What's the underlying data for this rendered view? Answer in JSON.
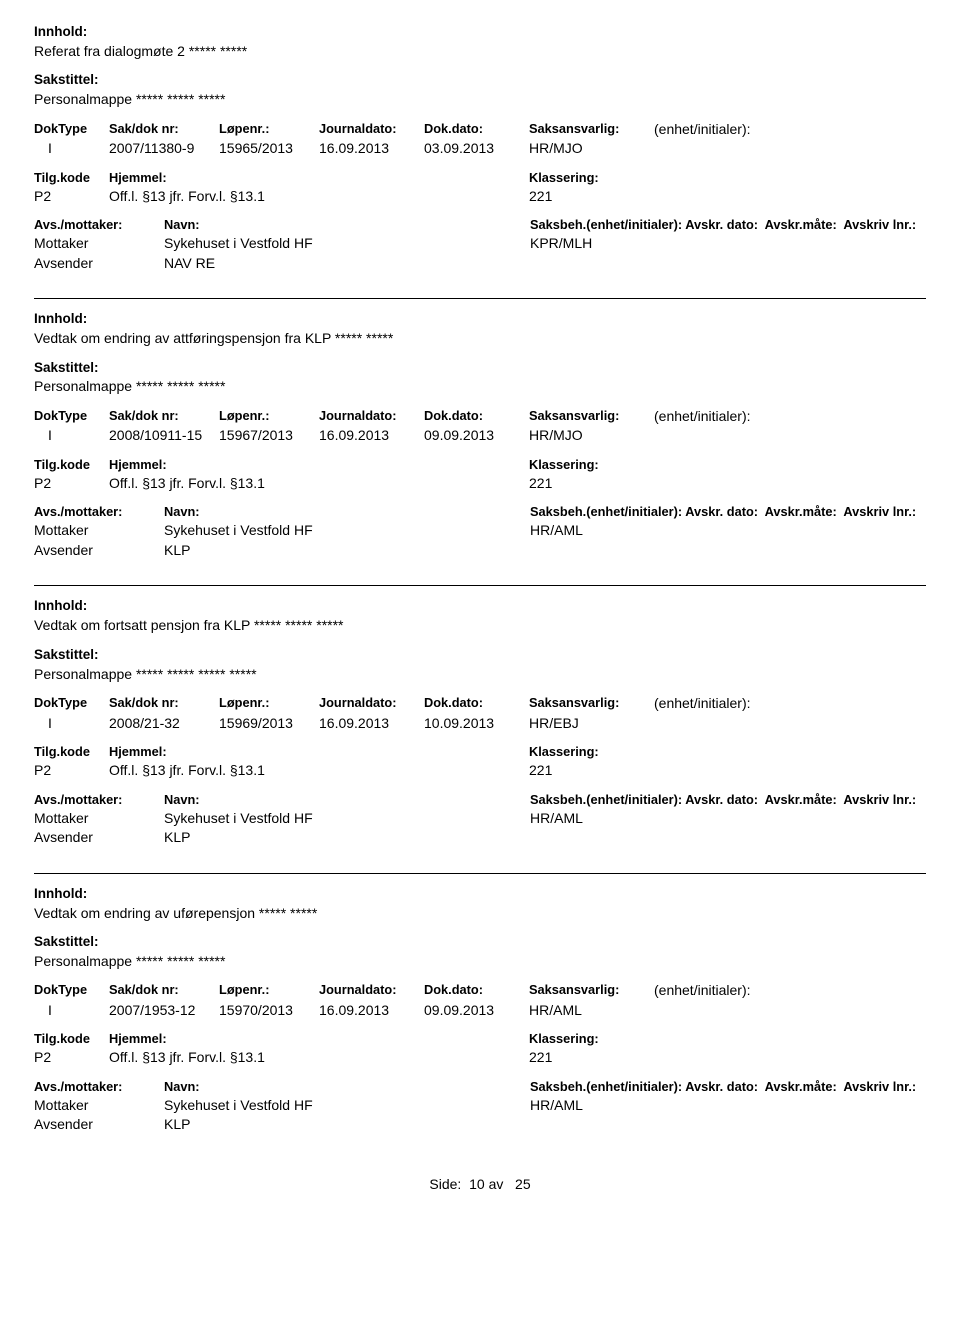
{
  "labels": {
    "innhold": "Innhold:",
    "sakstittel": "Sakstittel:",
    "doktype": "DokType",
    "sakdok": "Sak/dok nr:",
    "lopenr": "Løpenr.:",
    "journaldato": "Journaldato:",
    "dokdato": "Dok.dato:",
    "saksansvarlig": "Saksansvarlig:",
    "enhetinit": "(enhet/initialer):",
    "tilgkode": "Tilg.kode",
    "hjemmel": "Hjemmel:",
    "klassering": "Klassering:",
    "avsmottaker": "Avs./mottaker:",
    "navn": "Navn:",
    "saksbeh": "Saksbeh.(enhet/initialer):",
    "avskrdato": "Avskr. dato:",
    "avskrmate": "Avskr.måte:",
    "avskrivlnr": "Avskriv lnr.:",
    "mottaker": "Mottaker",
    "avsender": "Avsender"
  },
  "footer": {
    "label": "Side:",
    "page": "10",
    "of": "av",
    "total": "25"
  },
  "entries": [
    {
      "innhold": "Referat fra dialogmøte 2 ***** *****",
      "sakstittel": "Personalmappe ***** ***** *****",
      "doktype": "I",
      "sakdok": "2007/11380-9",
      "lopenr": "15965/2013",
      "journaldato": "16.09.2013",
      "dokdato": "03.09.2013",
      "saksansvarlig": "HR/MJO",
      "tilgkode": "P2",
      "hjemmel": "Off.l. §13  jfr. Forv.l. §13.1",
      "klassering": "221",
      "mottaker_navn": "Sykehuset i Vestfold HF",
      "saksbeh": "KPR/MLH",
      "avsender_navn": "NAV RE"
    },
    {
      "innhold": "Vedtak om endring av attføringspensjon fra KLP ***** *****",
      "sakstittel": "Personalmappe ***** *****  *****",
      "doktype": "I",
      "sakdok": "2008/10911-15",
      "lopenr": "15967/2013",
      "journaldato": "16.09.2013",
      "dokdato": "09.09.2013",
      "saksansvarlig": "HR/MJO",
      "tilgkode": "P2",
      "hjemmel": "Off.l. §13  jfr. Forv.l. §13.1",
      "klassering": "221",
      "mottaker_navn": "Sykehuset i Vestfold HF",
      "saksbeh": "HR/AML",
      "avsender_navn": "KLP"
    },
    {
      "innhold": "Vedtak om fortsatt pensjon fra KLP ***** ***** *****",
      "sakstittel": "Personalmappe ***** ***** ***** *****",
      "doktype": "I",
      "sakdok": "2008/21-32",
      "lopenr": "15969/2013",
      "journaldato": "16.09.2013",
      "dokdato": "10.09.2013",
      "saksansvarlig": "HR/EBJ",
      "tilgkode": "P2",
      "hjemmel": "Off.l. §13  jfr. Forv.l. §13.1",
      "klassering": "221",
      "mottaker_navn": "Sykehuset i Vestfold HF",
      "saksbeh": "HR/AML",
      "avsender_navn": "KLP"
    },
    {
      "innhold": "Vedtak om endring av uførepensjon ***** *****",
      "sakstittel": "Personalmappe ***** ***** *****",
      "doktype": "I",
      "sakdok": "2007/1953-12",
      "lopenr": "15970/2013",
      "journaldato": "16.09.2013",
      "dokdato": "09.09.2013",
      "saksansvarlig": "HR/AML",
      "tilgkode": "P2",
      "hjemmel": "Off.l. §13  jfr. Forv.l. §13.1",
      "klassering": "221",
      "mottaker_navn": "Sykehuset i Vestfold HF",
      "saksbeh": "HR/AML",
      "avsender_navn": "KLP"
    }
  ]
}
